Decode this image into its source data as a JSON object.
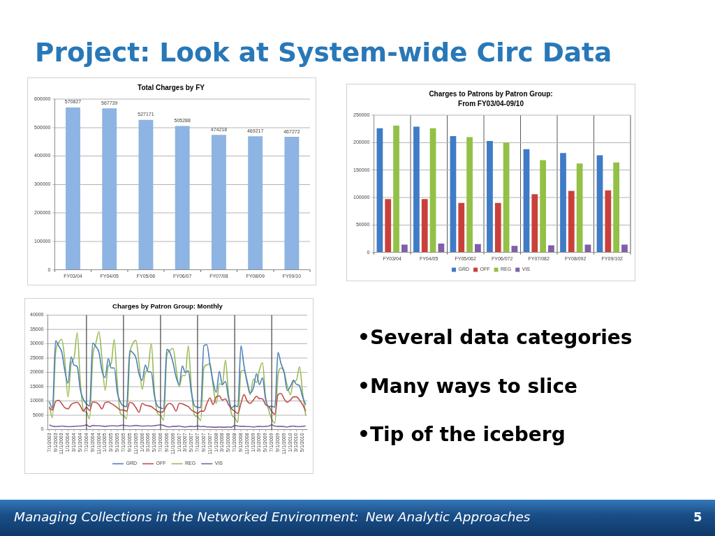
{
  "chart_data": [
    {
      "type": "other",
      "title": "Project: Look at System-wide Circ Data"
    },
    {
      "type": "bar",
      "title": "Total Charges by FY",
      "categories": [
        "FY03/04",
        "FY04/05",
        "FY05/06",
        "FY06/07",
        "FY07/08",
        "FY08/09",
        "FY09/10"
      ],
      "values": [
        570827,
        567739,
        527171,
        505288,
        474218,
        469217,
        467272
      ],
      "color": "#8db4e2",
      "ylim": [
        0,
        600000
      ],
      "yticks": [
        0,
        100000,
        200000,
        300000,
        400000,
        500000,
        600000
      ],
      "grid": "y",
      "data_labels": true
    },
    {
      "type": "bar",
      "title": "Charges to Patrons by Patron Group:",
      "subtitle": "From FY03/04-09/10",
      "categories": [
        "FY03/04",
        "FY04/05",
        "FY05/062",
        "FY06/072",
        "FY07/082",
        "FY08/092",
        "FY09/102"
      ],
      "series": [
        {
          "name": "GRD",
          "color": "#3f7bc6",
          "values": [
            226000,
            229000,
            212000,
            203000,
            188000,
            181000,
            177000
          ]
        },
        {
          "name": "OFF",
          "color": "#c9403b",
          "values": [
            97000,
            97000,
            90000,
            90000,
            106000,
            112000,
            113000
          ]
        },
        {
          "name": "REG",
          "color": "#93c047",
          "values": [
            231000,
            226000,
            210000,
            200000,
            168000,
            162000,
            164000
          ]
        },
        {
          "name": "VIS",
          "color": "#7f5fa6",
          "values": [
            14000,
            16000,
            15000,
            12000,
            13000,
            14000,
            14000
          ]
        }
      ],
      "ylim": [
        0,
        250000
      ],
      "yticks": [
        0,
        50000,
        100000,
        150000,
        200000,
        250000
      ],
      "grid": true,
      "legend": "bottom"
    },
    {
      "type": "line",
      "title": "Charges by Patron Group: Monthly",
      "x": [
        "2003-07",
        "2003-08",
        "2003-09",
        "2003-10",
        "2003-11",
        "2003-12",
        "2004-01",
        "2004-02",
        "2004-03",
        "2004-04",
        "2004-05",
        "2004-06",
        "2004-07",
        "2004-08",
        "2004-09",
        "2004-10",
        "2004-11",
        "2004-12",
        "2005-01",
        "2005-02",
        "2005-03",
        "2005-04",
        "2005-05",
        "2005-06",
        "2005-07",
        "2005-08",
        "2005-09",
        "2005-10",
        "2005-11",
        "2005-12",
        "2006-01",
        "2006-02",
        "2006-03",
        "2006-04",
        "2006-05",
        "2006-06",
        "2006-07",
        "2006-08",
        "2006-09",
        "2006-10",
        "2006-11",
        "2006-12",
        "2007-01",
        "2007-02",
        "2007-03",
        "2007-04",
        "2007-05",
        "2007-06",
        "2007-07",
        "2007-08",
        "2007-09",
        "2007-10",
        "2007-11",
        "2007-12",
        "2008-01",
        "2008-02",
        "2008-03",
        "2008-04",
        "2008-05",
        "2008-06",
        "2008-07",
        "2008-08",
        "2008-09",
        "2008-10",
        "2008-11",
        "2008-12",
        "2009-01",
        "2009-02",
        "2009-03",
        "2009-04",
        "2009-05",
        "2009-06",
        "2009-07",
        "2009-08",
        "2009-09",
        "2009-10",
        "2009-11",
        "2009-12",
        "2010-01",
        "2010-02",
        "2010-03",
        "2010-04",
        "2010-05",
        "2010-06"
      ],
      "xlim": [
        "2003-06-16",
        "2010-06-16"
      ],
      "xticks": [
        {
          "value": "2003-07",
          "label": "7/1/2003"
        },
        {
          "value": "2003-09",
          "label": "9/1/2003"
        },
        {
          "value": "2003-11",
          "label": "11/1/2003"
        },
        {
          "value": "2004-01",
          "label": "1/1/2004"
        },
        {
          "value": "2004-03",
          "label": "3/1/2004"
        },
        {
          "value": "2004-05",
          "label": "5/1/2004"
        },
        {
          "value": "2004-07",
          "label": "7/1/2004"
        },
        {
          "value": "2004-09",
          "label": "9/1/2004"
        },
        {
          "value": "2004-11",
          "label": "11/1/2004"
        },
        {
          "value": "2005-01",
          "label": "1/1/2005"
        },
        {
          "value": "2005-03",
          "label": "3/1/2005"
        },
        {
          "value": "2005-05",
          "label": "5/1/2005"
        },
        {
          "value": "2005-07",
          "label": "7/1/2005"
        },
        {
          "value": "2005-09",
          "label": "9/1/2005"
        },
        {
          "value": "2005-11",
          "label": "11/1/2005"
        },
        {
          "value": "2006-01",
          "label": "1/1/2006"
        },
        {
          "value": "2006-03",
          "label": "3/1/2006"
        },
        {
          "value": "2006-05",
          "label": "5/1/2006"
        },
        {
          "value": "2006-07",
          "label": "7/1/2006"
        },
        {
          "value": "2006-09",
          "label": "9/1/2006"
        },
        {
          "value": "2006-11",
          "label": "11/1/2006"
        },
        {
          "value": "2007-01",
          "label": "1/1/2007"
        },
        {
          "value": "2007-03",
          "label": "3/1/2007"
        },
        {
          "value": "2007-05",
          "label": "5/1/2007"
        },
        {
          "value": "2007-07",
          "label": "7/1/2007"
        },
        {
          "value": "2007-09",
          "label": "9/1/2007"
        },
        {
          "value": "2007-11",
          "label": "11/1/2007"
        },
        {
          "value": "2008-01",
          "label": "1/1/2008"
        },
        {
          "value": "2008-03",
          "label": "3/1/2008"
        },
        {
          "value": "2008-05",
          "label": "5/1/2008"
        },
        {
          "value": "2008-07",
          "label": "7/1/2008"
        },
        {
          "value": "2008-09",
          "label": "9/1/2008"
        },
        {
          "value": "2008-11",
          "label": "11/1/2008"
        },
        {
          "value": "2009-01",
          "label": "1/1/2009"
        },
        {
          "value": "2009-03",
          "label": "3/1/2009"
        },
        {
          "value": "2009-05",
          "label": "5/1/2009"
        },
        {
          "value": "2009-07",
          "label": "7/1/2009"
        },
        {
          "value": "2009-09",
          "label": "9/1/2009"
        },
        {
          "value": "2009-11",
          "label": "11/1/2009"
        },
        {
          "value": "2010-01",
          "label": "1/1/2010"
        },
        {
          "value": "2010-03",
          "label": "3/1/2010"
        },
        {
          "value": "2010-05",
          "label": "5/1/2010"
        }
      ],
      "series": [
        {
          "name": "GRD",
          "color": "#4a7ebb",
          "values": [
            9700,
            7400,
            31000,
            29200,
            27000,
            20500,
            16200,
            25400,
            22500,
            22000,
            14000,
            10500,
            9000,
            8200,
            30200,
            29000,
            27000,
            20500,
            18200,
            24800,
            21500,
            21500,
            13000,
            9500,
            8200,
            8000,
            27600,
            26800,
            25000,
            19500,
            17200,
            22500,
            20200,
            20000,
            12000,
            8200,
            7600,
            7200,
            28000,
            26900,
            23400,
            18400,
            15700,
            22200,
            19900,
            20500,
            13000,
            8300,
            7800,
            7600,
            29300,
            29600,
            22600,
            16800,
            13000,
            20300,
            15700,
            16800,
            11000,
            7600,
            8300,
            8000,
            29300,
            22200,
            16800,
            12800,
            14500,
            19500,
            15700,
            18000,
            10700,
            8000,
            8100,
            7800,
            26900,
            23000,
            19900,
            13600,
            15000,
            17200,
            15800,
            15300,
            11400,
            8700
          ]
        },
        {
          "name": "OFF",
          "color": "#be4b48",
          "values": [
            7600,
            6800,
            9800,
            10200,
            9000,
            7600,
            7200,
            8700,
            9300,
            9500,
            8300,
            6400,
            7800,
            6600,
            9600,
            9500,
            8700,
            7200,
            9400,
            9600,
            9100,
            8400,
            7600,
            6800,
            6800,
            6400,
            9500,
            9100,
            7600,
            6000,
            9100,
            8500,
            8300,
            8000,
            7200,
            6400,
            6000,
            6400,
            8500,
            9100,
            8300,
            6400,
            9100,
            9000,
            8500,
            8000,
            6800,
            6200,
            5600,
            6400,
            6400,
            9100,
            11000,
            8700,
            11400,
            11700,
            10300,
            10700,
            8700,
            7200,
            6400,
            5600,
            9100,
            12200,
            9900,
            9100,
            10300,
            11600,
            10800,
            10700,
            8700,
            8000,
            6400,
            5300,
            12200,
            12600,
            10700,
            9500,
            10300,
            11400,
            11400,
            10300,
            8700,
            6400
          ]
        },
        {
          "name": "REG",
          "color": "#98b954",
          "values": [
            8000,
            4100,
            27000,
            30400,
            31500,
            24000,
            11400,
            23000,
            25000,
            33800,
            16800,
            6800,
            6000,
            3700,
            25300,
            30000,
            34200,
            24600,
            13700,
            22200,
            23000,
            31500,
            16000,
            5600,
            4900,
            3700,
            25700,
            30000,
            31100,
            23400,
            14100,
            19900,
            21500,
            30000,
            13700,
            5600,
            4900,
            3300,
            25700,
            27600,
            28400,
            21500,
            14900,
            18800,
            18800,
            29200,
            14500,
            4900,
            4500,
            3100,
            21500,
            22600,
            23000,
            15300,
            9100,
            16000,
            15700,
            24200,
            12200,
            5300,
            4100,
            2500,
            20300,
            20700,
            16000,
            12200,
            17600,
            16400,
            20700,
            23400,
            11400,
            6800,
            3700,
            2200,
            18800,
            21500,
            19900,
            15300,
            12200,
            16800,
            17200,
            21900,
            13000,
            4900
          ]
        },
        {
          "name": "VIS",
          "color": "#7d60a0",
          "values": [
            1600,
            1200,
            1000,
            1100,
            1200,
            1100,
            1000,
            1000,
            1100,
            1200,
            1200,
            1300,
            1600,
            1000,
            1400,
            1300,
            1300,
            1200,
            1100,
            1200,
            1300,
            1300,
            1200,
            1400,
            1500,
            1300,
            1200,
            1300,
            1400,
            1300,
            1200,
            1200,
            1300,
            1200,
            1300,
            1500,
            1600,
            1400,
            1000,
            900,
            1100,
            1100,
            1200,
            1000,
            900,
            1000,
            1100,
            1000,
            1300,
            1000,
            1100,
            900,
            900,
            800,
            800,
            900,
            800,
            800,
            900,
            800,
            1400,
            1200,
            1100,
            1100,
            1000,
            1000,
            900,
            1000,
            1100,
            1000,
            1100,
            1200,
            1600,
            1200,
            1100,
            1100,
            1000,
            900,
            1100,
            1200,
            1000,
            1000,
            1100,
            1200
          ]
        }
      ],
      "ylim": [
        0,
        40000
      ],
      "yticks": [
        0,
        5000,
        10000,
        15000,
        20000,
        25000,
        30000,
        35000,
        40000
      ],
      "grid": "y",
      "legend": "bottom",
      "marker": "none",
      "ref_lines": [
        {
          "axis": "x",
          "value": "2004-07",
          "color": "#404040"
        },
        {
          "axis": "x",
          "value": "2005-07",
          "color": "#404040"
        },
        {
          "axis": "x",
          "value": "2006-07",
          "color": "#404040"
        },
        {
          "axis": "x",
          "value": "2007-07",
          "color": "#404040"
        },
        {
          "axis": "x",
          "value": "2008-07",
          "color": "#404040"
        },
        {
          "axis": "x",
          "value": "2009-07",
          "color": "#404040"
        }
      ]
    },
    {
      "type": "other",
      "annotations": [
        "•Several data categories",
        "•Many ways to slice",
        "•Tip of the iceberg",
        "Managing Collections in the Networked Environment:",
        "New Analytic Approaches",
        "5"
      ]
    }
  ]
}
